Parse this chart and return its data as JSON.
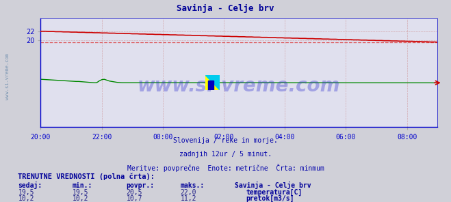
{
  "title": "Savinja - Celje brv",
  "title_color": "#000099",
  "bg_color": "#d0d0d8",
  "plot_bg_color": "#e0e0ee",
  "grid_color": "#cc8888",
  "xlabel_color": "#0000cc",
  "x_ticks_labels": [
    "20:00",
    "22:00",
    "00:00",
    "02:00",
    "04:00",
    "06:00",
    "08:00"
  ],
  "x_ticks_pos": [
    0,
    24,
    48,
    72,
    96,
    120,
    144
  ],
  "n_points": 157,
  "temp_start": 22.0,
  "temp_end": 19.5,
  "temp_min_line": 19.5,
  "temp_color": "#cc0000",
  "temp_dashed_color": "#dd4444",
  "flow_color": "#008800",
  "flow_min_line": 10.2,
  "ylim": [
    0,
    25
  ],
  "y_ticks": [
    20,
    22
  ],
  "watermark": "www.si-vreme.com",
  "watermark_color": "#2222cc",
  "watermark_alpha": 0.32,
  "sub_text1": "Slovenija / reke in morje.",
  "sub_text2": "zadnjih 12ur / 5 minut.",
  "sub_text3": "Meritve: povprečne  Enote: metrične  Črta: minmum",
  "sub_text_color": "#0000aa",
  "table_header": "TRENUTNE VREDNOSTI (polna črta):",
  "table_cols": [
    "sedaj:",
    "min.:",
    "povpr.:",
    "maks.:",
    "Savinja - Celje brv"
  ],
  "table_val_temp": [
    "19,5",
    "19,5",
    "20,5",
    "22,0"
  ],
  "table_val_flow": [
    "10,2",
    "10,2",
    "10,7",
    "11,2"
  ],
  "table_label_temp": "temperatura[C]",
  "table_label_flow": "pretok[m3/s]",
  "sidebar_text": "www.si-vreme.com",
  "sidebar_color": "#6688aa",
  "border_color": "#0000cc",
  "arrow_color": "#cc0000"
}
